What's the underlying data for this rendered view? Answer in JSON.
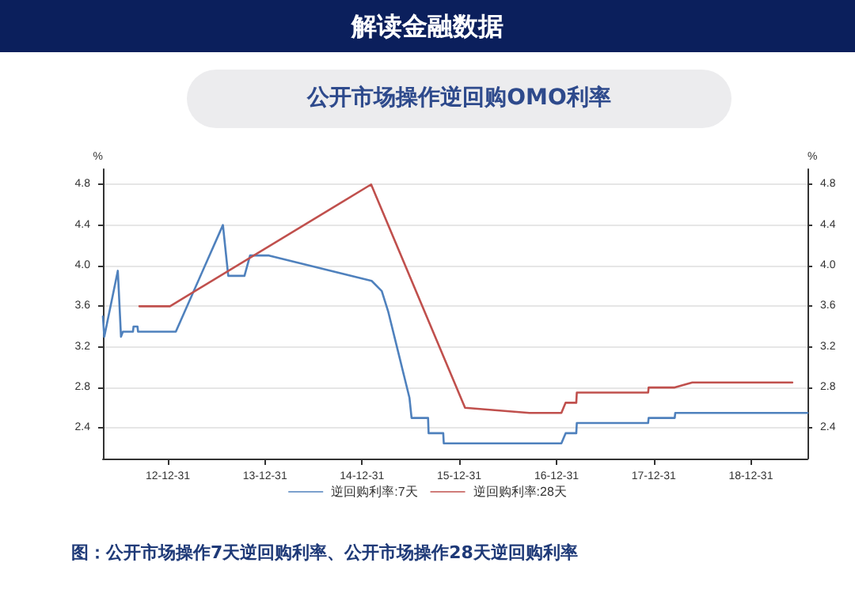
{
  "chart_data": {
    "type": "line",
    "title": "解读金融数据",
    "subtitle": "公开市场操作逆回购OMO利率",
    "ylabel": "%",
    "y2label": "%",
    "annotations": [
      "图：公开市场操作7天逆回购利率、公开市场操作28天逆回购利率"
    ],
    "xlim": [
      "2012-05-01",
      "2019-08-01"
    ],
    "xticks": [
      {
        "value": "2012-12-31",
        "label": "12-12-31"
      },
      {
        "value": "2013-12-31",
        "label": "13-12-31"
      },
      {
        "value": "2014-12-31",
        "label": "14-12-31"
      },
      {
        "value": "2015-12-31",
        "label": "15-12-31"
      },
      {
        "value": "2016-12-31",
        "label": "16-12-31"
      },
      {
        "value": "2017-12-31",
        "label": "17-12-31"
      },
      {
        "value": "2018-12-31",
        "label": "18-12-31"
      }
    ],
    "ylim": [
      2.1,
      4.95
    ],
    "yticks": [
      2.4,
      2.8,
      3.2,
      3.6,
      {
        "value": 4,
        "label": "4.0"
      },
      4.4,
      4.8
    ],
    "y2lim": [
      2.1,
      4.95
    ],
    "y2ticks": [
      2.4,
      2.8,
      3.2,
      3.6,
      {
        "value": 4,
        "label": "4.0"
      },
      4.4,
      4.8
    ],
    "grid": "y",
    "legend": "bottom",
    "marker": "none",
    "line_style": "solid",
    "series": [
      {
        "name": "逆回购利率:7天",
        "color": "#4f81bd",
        "x": [
          "2012-05-01",
          "2012-05-06",
          "2012-06-26",
          "2012-07-08",
          "2012-07-15",
          "2012-08-22",
          "2012-08-24",
          "2012-09-08",
          "2012-09-10",
          "2013-01-30",
          "2013-07-26",
          "2013-08-15",
          "2013-10-15",
          "2013-11-05",
          "2014-01-15",
          "2015-02-05",
          "2015-03-15",
          "2015-04-08",
          "2015-06-27",
          "2015-07-05",
          "2015-09-05",
          "2015-09-07",
          "2015-11-01",
          "2015-11-03",
          "2017-01-18",
          "2017-02-03",
          "2017-03-15",
          "2017-03-17",
          "2017-12-10",
          "2017-12-12",
          "2018-03-20",
          "2018-03-22",
          "2019-08-01"
        ],
        "values": [
          3.5,
          3.3,
          3.95,
          3.3,
          3.35,
          3.35,
          3.4,
          3.4,
          3.35,
          3.35,
          4.4,
          3.9,
          3.9,
          4.1,
          4.1,
          3.85,
          3.75,
          3.55,
          2.7,
          2.5,
          2.5,
          2.35,
          2.35,
          2.25,
          2.25,
          2.35,
          2.35,
          2.45,
          2.45,
          2.5,
          2.5,
          2.55,
          2.55
        ]
      },
      {
        "name": "逆回购利率:28天",
        "color": "#c0504d",
        "x": [
          "2012-09-15",
          "2013-01-08",
          "2015-02-03",
          "2016-01-22",
          "2016-09-20",
          "2017-01-18",
          "2017-02-03",
          "2017-03-15",
          "2017-03-17",
          "2017-12-10",
          "2017-12-12",
          "2018-03-20",
          "2018-05-25",
          "2019-06-05"
        ],
        "values": [
          3.6,
          3.6,
          4.8,
          2.6,
          2.55,
          2.55,
          2.65,
          2.65,
          2.75,
          2.75,
          2.8,
          2.8,
          2.85,
          2.85
        ]
      }
    ]
  }
}
